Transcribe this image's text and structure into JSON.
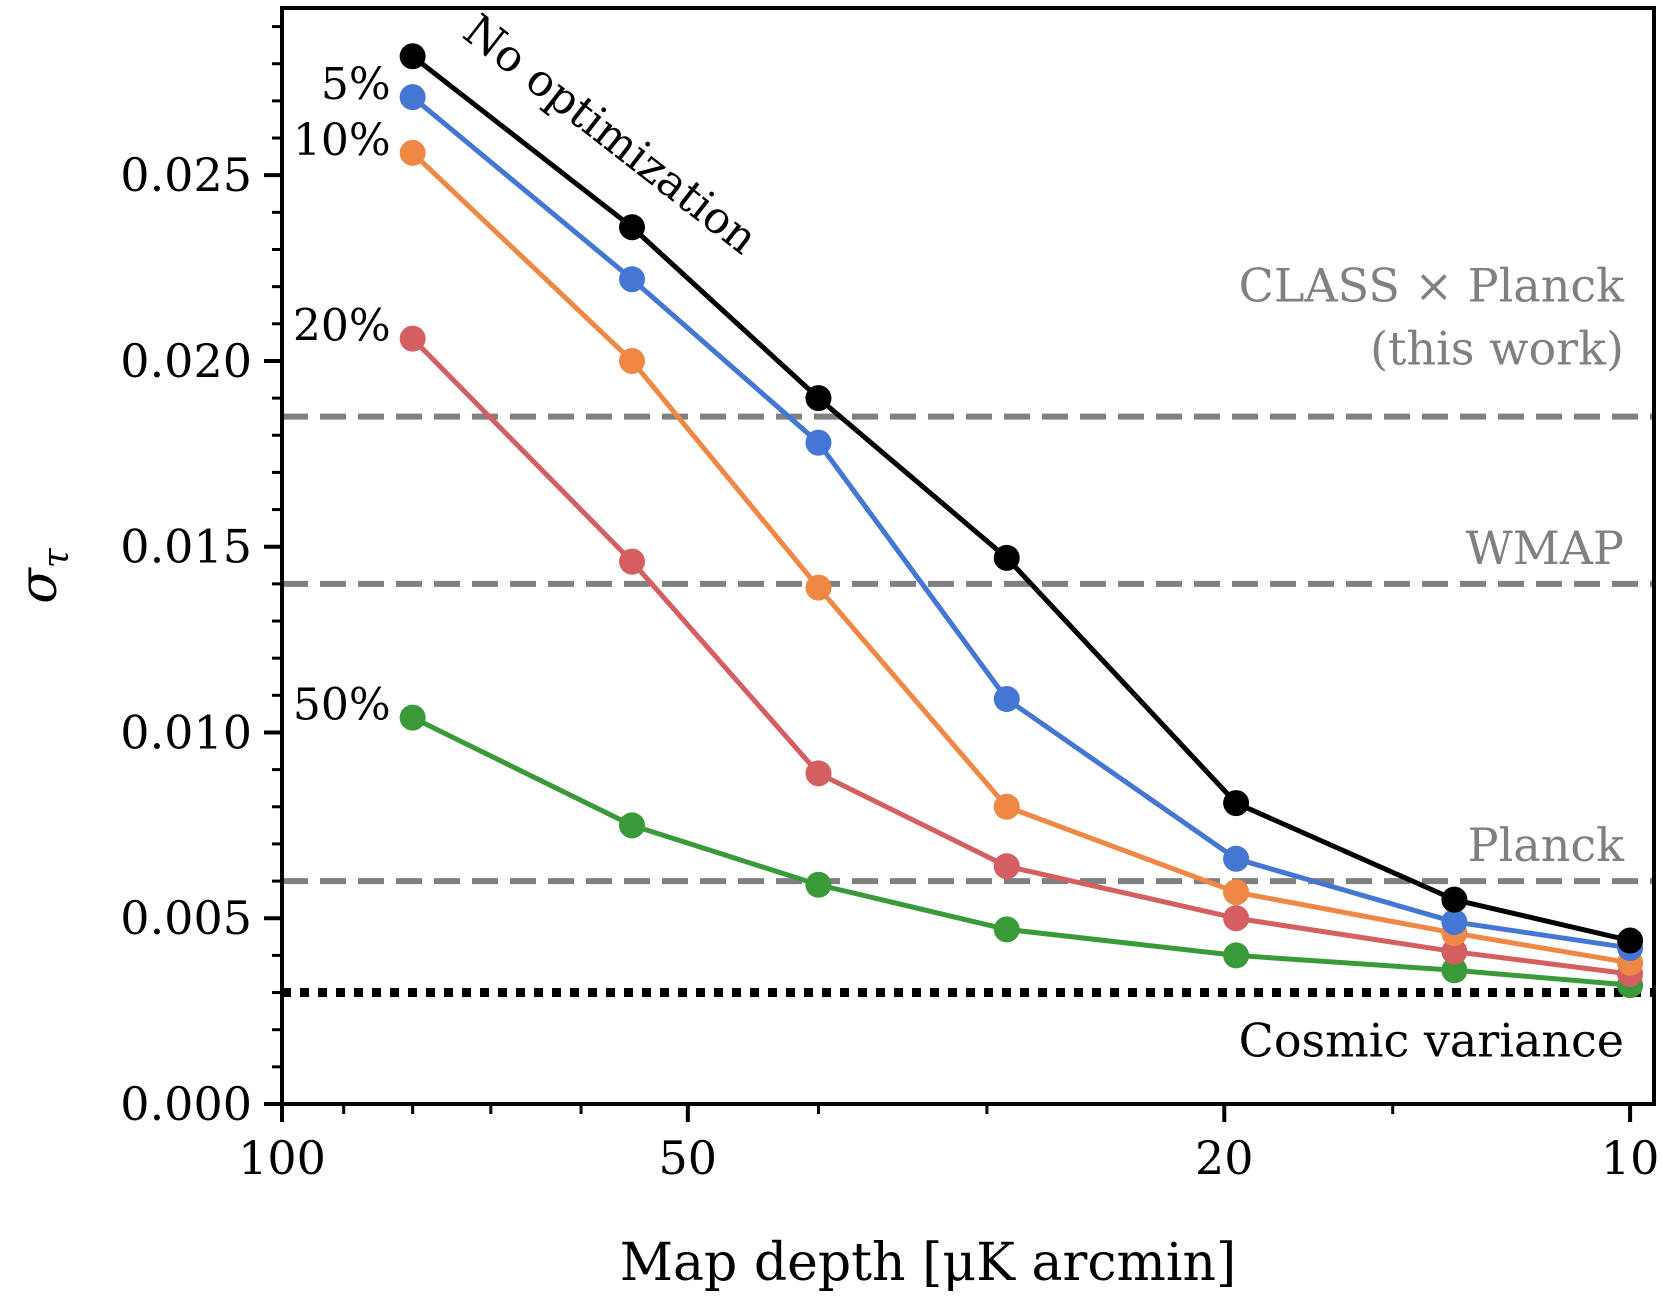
{
  "chart_data": {
    "type": "line",
    "xlabel": "Map depth [μK arcmin]",
    "ylabel": "σ",
    "ylabel_sub": "τ",
    "x_scale": "log",
    "x_reversed": true,
    "xlim": [
      100,
      9.6
    ],
    "ylim": [
      0,
      0.0295
    ],
    "xtick_labels": [
      "100",
      "50",
      "20",
      "10"
    ],
    "ytick_labels": [
      "0.000",
      "0.005",
      "0.010",
      "0.015",
      "0.020",
      "0.025"
    ],
    "x": [
      80,
      55,
      40,
      29,
      19.6,
      13.5,
      10
    ],
    "series": [
      {
        "name": "No optimization",
        "color": "#000000",
        "values": [
          0.0282,
          0.0236,
          0.019,
          0.0147,
          0.0081,
          0.0055,
          0.0044
        ]
      },
      {
        "name": "5%",
        "color": "#4477d4",
        "values": [
          0.0271,
          0.0222,
          0.0178,
          0.0109,
          0.0066,
          0.0049,
          0.0042
        ]
      },
      {
        "name": "10%",
        "color": "#ee8844",
        "values": [
          0.0256,
          0.02,
          0.0139,
          0.008,
          0.0057,
          0.0046,
          0.0038
        ]
      },
      {
        "name": "20%",
        "color": "#d55e60",
        "values": [
          0.0206,
          0.0146,
          0.0089,
          0.0064,
          0.005,
          0.0041,
          0.0035
        ]
      },
      {
        "name": "50%",
        "color": "#3a9a3a",
        "values": [
          0.0104,
          0.0075,
          0.0059,
          0.0047,
          0.004,
          0.0036,
          0.0032
        ]
      }
    ],
    "reference_lines": [
      {
        "label": "CLASS × Planck",
        "label2": "(this work)",
        "y": 0.0185,
        "style": "dashed",
        "color": "#808080"
      },
      {
        "label": "WMAP",
        "label2": "",
        "y": 0.014,
        "style": "dashed",
        "color": "#808080"
      },
      {
        "label": "Planck",
        "label2": "",
        "y": 0.006,
        "style": "dashed",
        "color": "#808080"
      },
      {
        "label": "Cosmic variance",
        "label2": "",
        "y": 0.003,
        "style": "dotted",
        "color": "#000000"
      }
    ]
  }
}
